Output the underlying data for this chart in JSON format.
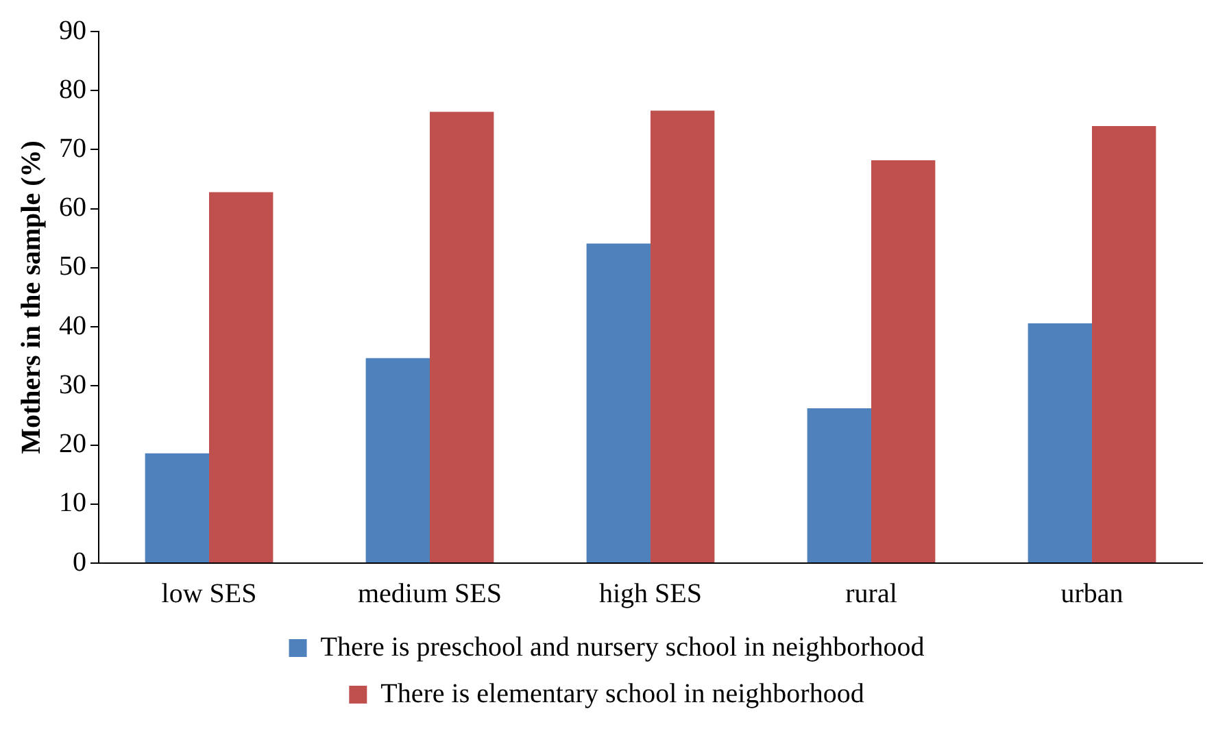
{
  "chart_data": {
    "type": "bar",
    "ylabel": "Mothers in the sample (%)",
    "categories": [
      "low SES",
      "medium SES",
      "high SES",
      "rural",
      "urban"
    ],
    "series": [
      {
        "name": "There is preschool and nursery school in neighborhood",
        "color": "#4f81bd",
        "values": [
          18.6,
          34.7,
          54.1,
          26.2,
          40.6
        ]
      },
      {
        "name": "There is elementary school in neighborhood",
        "color": "#c0504d",
        "values": [
          62.8,
          76.4,
          76.6,
          68.2,
          74.0
        ]
      }
    ],
    "ylim": [
      0,
      90
    ],
    "yticks": [
      0,
      10,
      20,
      30,
      40,
      50,
      60,
      70,
      80,
      90
    ],
    "grid": false,
    "legend": "bottom"
  }
}
